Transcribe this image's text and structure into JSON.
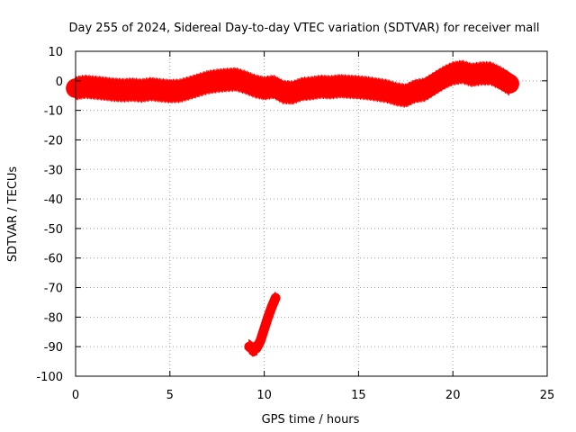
{
  "chart_data": {
    "type": "scatter",
    "title": "Day 255 of 2024, Sidereal Day-to-day VTEC variation (SDTVAR) for receiver mall",
    "xlabel": "GPS time / hours",
    "ylabel": "SDTVAR / TECUs",
    "xlim": [
      0,
      25
    ],
    "ylim": [
      -100,
      10
    ],
    "xticks": [
      0,
      5,
      10,
      15,
      20,
      25
    ],
    "yticks": [
      10,
      0,
      -10,
      -20,
      -30,
      -40,
      -50,
      -60,
      -70,
      -80,
      -90,
      -100
    ],
    "grid": true,
    "series": [
      {
        "color": "#ff0000",
        "band_width": 3,
        "x": [
          0.0,
          0.5,
          1.0,
          1.5,
          2.0,
          2.5,
          3.0,
          3.5,
          4.0,
          4.5,
          5.0,
          5.5,
          6.0,
          6.5,
          7.0,
          7.5,
          8.0,
          8.5,
          9.0,
          9.5,
          10.0,
          10.5,
          11.0,
          11.5,
          12.0,
          12.5,
          13.0,
          13.5,
          14.0,
          14.5,
          15.0,
          15.5,
          16.0,
          16.5,
          17.0,
          17.5,
          18.0,
          18.5,
          19.0,
          19.5,
          20.0,
          20.5,
          21.0,
          21.5,
          22.0,
          22.5,
          23.0
        ],
        "y": [
          -2.5,
          -2.0,
          -2.3,
          -2.6,
          -3.0,
          -3.2,
          -3.0,
          -3.3,
          -2.8,
          -3.2,
          -3.5,
          -3.4,
          -2.5,
          -1.5,
          -0.5,
          0.0,
          0.3,
          0.5,
          -0.5,
          -1.8,
          -2.5,
          -2.0,
          -3.8,
          -4.0,
          -2.8,
          -2.5,
          -2.0,
          -2.2,
          -1.8,
          -2.0,
          -2.2,
          -2.5,
          -3.0,
          -3.5,
          -4.5,
          -5.0,
          -3.5,
          -3.0,
          -1.0,
          1.0,
          2.5,
          3.0,
          2.0,
          2.5,
          2.5,
          1.0,
          -1.0
        ]
      },
      {
        "color": "#ff0000",
        "band_width": 1.5,
        "x": [
          9.2,
          9.4,
          9.6,
          9.8,
          10.0,
          10.2,
          10.4,
          10.6
        ],
        "y": [
          -90.0,
          -91.0,
          -90.5,
          -88.0,
          -84.0,
          -80.0,
          -76.5,
          -73.5
        ]
      }
    ]
  }
}
